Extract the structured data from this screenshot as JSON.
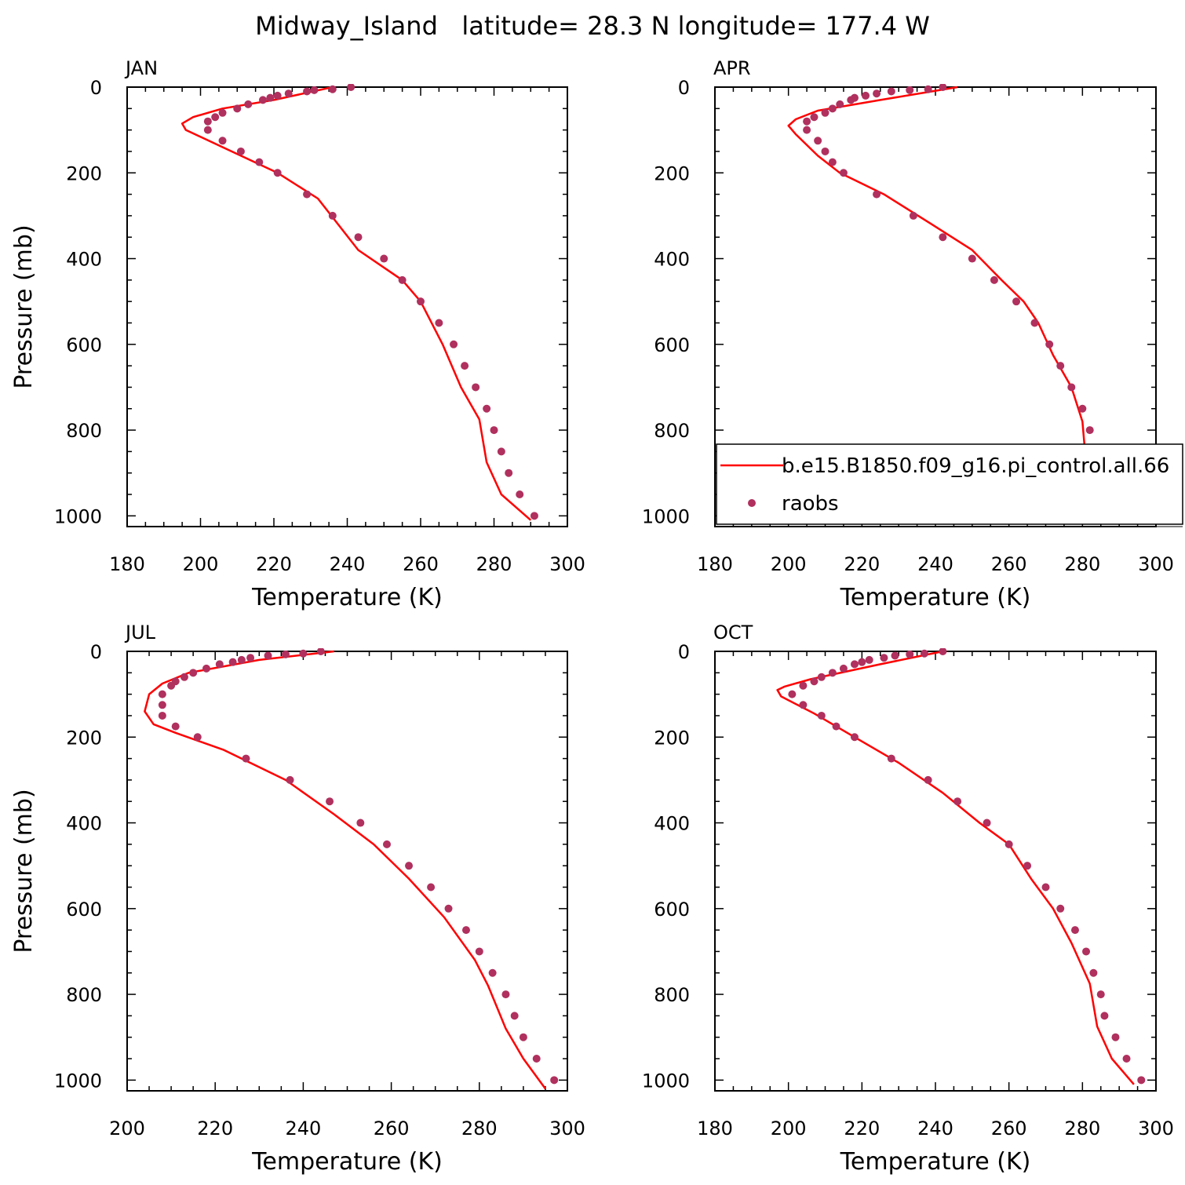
{
  "title": "Midway_Island   latitude= 28.3 N longitude= 177.4 W",
  "colors": {
    "model": "#ff0000",
    "obs": "#b0305e"
  },
  "legend": {
    "model_label": "b.e15.B1850.f09_g16.pi_control.all.66",
    "obs_label": "raobs"
  },
  "chart_data": [
    {
      "type": "line",
      "panel": "JAN",
      "xlabel": "Temperature (K)",
      "ylabel": "Pressure (mb)",
      "xlim": [
        180,
        300
      ],
      "xticks": [
        180,
        200,
        220,
        240,
        260,
        280,
        300
      ],
      "ylim": [
        0,
        1025
      ],
      "yticks": [
        0,
        200,
        400,
        600,
        800,
        1000
      ],
      "y_inverted": true,
      "series": [
        {
          "name": "b.e15.B1850.f09_g16.pi_control.all.66",
          "kind": "line",
          "points": [
            [
              236,
              0
            ],
            [
              220,
              30
            ],
            [
              206,
              50
            ],
            [
              198,
              70
            ],
            [
              195,
              85
            ],
            [
              196,
              100
            ],
            [
              206,
              140
            ],
            [
              221,
              200
            ],
            [
              232,
              260
            ],
            [
              243,
              380
            ],
            [
              255,
              450
            ],
            [
              260,
              500
            ],
            [
              266,
              600
            ],
            [
              271,
              700
            ],
            [
              276,
              775
            ],
            [
              278,
              875
            ],
            [
              282,
              950
            ],
            [
              290,
              1010
            ]
          ]
        },
        {
          "name": "raobs",
          "kind": "markers",
          "points": [
            [
              241,
              0
            ],
            [
              236,
              5
            ],
            [
              231,
              7
            ],
            [
              229,
              10
            ],
            [
              224,
              15
            ],
            [
              221,
              20
            ],
            [
              219,
              25
            ],
            [
              217,
              30
            ],
            [
              213,
              40
            ],
            [
              210,
              50
            ],
            [
              206,
              60
            ],
            [
              204,
              70
            ],
            [
              202,
              80
            ],
            [
              202,
              100
            ],
            [
              206,
              125
            ],
            [
              211,
              150
            ],
            [
              216,
              175
            ],
            [
              221,
              200
            ],
            [
              229,
              250
            ],
            [
              236,
              300
            ],
            [
              243,
              350
            ],
            [
              250,
              400
            ],
            [
              255,
              450
            ],
            [
              260,
              500
            ],
            [
              265,
              550
            ],
            [
              269,
              600
            ],
            [
              272,
              650
            ],
            [
              275,
              700
            ],
            [
              278,
              750
            ],
            [
              280,
              800
            ],
            [
              282,
              850
            ],
            [
              284,
              900
            ],
            [
              287,
              950
            ],
            [
              291,
              1000
            ]
          ]
        }
      ]
    },
    {
      "type": "line",
      "panel": "APR",
      "xlabel": "Temperature (K)",
      "ylabel": "",
      "xlim": [
        180,
        300
      ],
      "xticks": [
        180,
        200,
        220,
        240,
        260,
        280,
        300
      ],
      "ylim": [
        0,
        1025
      ],
      "yticks": [
        0,
        200,
        400,
        600,
        800,
        1000
      ],
      "y_inverted": true,
      "series": [
        {
          "name": "b.e15.B1850.f09_g16.pi_control.all.66",
          "kind": "line",
          "points": [
            [
              246,
              0
            ],
            [
              225,
              30
            ],
            [
              208,
              55
            ],
            [
              202,
              75
            ],
            [
              200,
              90
            ],
            [
              202,
              110
            ],
            [
              208,
              160
            ],
            [
              214,
              200
            ],
            [
              226,
              250
            ],
            [
              239,
              320
            ],
            [
              250,
              380
            ],
            [
              258,
              450
            ],
            [
              264,
              500
            ],
            [
              268,
              550
            ],
            [
              272,
              625
            ],
            [
              277,
              700
            ],
            [
              280,
              780
            ],
            [
              281,
              880
            ],
            [
              286,
              950
            ],
            [
              290,
              1010
            ]
          ]
        },
        {
          "name": "raobs",
          "kind": "markers",
          "points": [
            [
              242,
              0
            ],
            [
              238,
              5
            ],
            [
              233,
              7
            ],
            [
              228,
              10
            ],
            [
              224,
              15
            ],
            [
              221,
              20
            ],
            [
              218,
              25
            ],
            [
              217,
              30
            ],
            [
              214,
              40
            ],
            [
              212,
              50
            ],
            [
              210,
              60
            ],
            [
              207,
              70
            ],
            [
              205,
              80
            ],
            [
              205,
              100
            ],
            [
              208,
              125
            ],
            [
              210,
              150
            ],
            [
              212,
              175
            ],
            [
              215,
              200
            ],
            [
              224,
              250
            ],
            [
              234,
              300
            ],
            [
              242,
              350
            ],
            [
              250,
              400
            ],
            [
              256,
              450
            ],
            [
              262,
              500
            ],
            [
              267,
              550
            ],
            [
              271,
              600
            ],
            [
              274,
              650
            ],
            [
              277,
              700
            ],
            [
              280,
              750
            ],
            [
              282,
              800
            ],
            [
              283,
              850
            ],
            [
              285,
              900
            ],
            [
              287,
              950
            ],
            [
              291,
              1000
            ]
          ]
        }
      ]
    },
    {
      "type": "line",
      "panel": "JUL",
      "xlabel": "Temperature (K)",
      "ylabel": "Pressure (mb)",
      "xlim": [
        200,
        300
      ],
      "xticks": [
        200,
        220,
        240,
        260,
        280,
        300
      ],
      "ylim": [
        0,
        1025
      ],
      "yticks": [
        0,
        200,
        400,
        600,
        800,
        1000
      ],
      "y_inverted": true,
      "series": [
        {
          "name": "b.e15.B1850.f09_g16.pi_control.all.66",
          "kind": "line",
          "points": [
            [
              247,
              0
            ],
            [
              230,
              20
            ],
            [
              214,
              50
            ],
            [
              208,
              75
            ],
            [
              205,
              100
            ],
            [
              204,
              140
            ],
            [
              206,
              170
            ],
            [
              211,
              190
            ],
            [
              222,
              230
            ],
            [
              236,
              300
            ],
            [
              247,
              380
            ],
            [
              256,
              450
            ],
            [
              264,
              530
            ],
            [
              272,
              620
            ],
            [
              279,
              720
            ],
            [
              282,
              780
            ],
            [
              286,
              880
            ],
            [
              290,
              950
            ],
            [
              295,
              1020
            ]
          ]
        },
        {
          "name": "raobs",
          "kind": "markers",
          "points": [
            [
              244,
              0
            ],
            [
              240,
              5
            ],
            [
              236,
              7
            ],
            [
              232,
              10
            ],
            [
              228,
              15
            ],
            [
              226,
              20
            ],
            [
              224,
              25
            ],
            [
              221,
              30
            ],
            [
              218,
              40
            ],
            [
              215,
              50
            ],
            [
              213,
              60
            ],
            [
              211,
              70
            ],
            [
              210,
              80
            ],
            [
              208,
              100
            ],
            [
              208,
              125
            ],
            [
              208,
              150
            ],
            [
              211,
              175
            ],
            [
              216,
              200
            ],
            [
              227,
              250
            ],
            [
              237,
              300
            ],
            [
              246,
              350
            ],
            [
              253,
              400
            ],
            [
              259,
              450
            ],
            [
              264,
              500
            ],
            [
              269,
              550
            ],
            [
              273,
              600
            ],
            [
              277,
              650
            ],
            [
              280,
              700
            ],
            [
              283,
              750
            ],
            [
              286,
              800
            ],
            [
              288,
              850
            ],
            [
              290,
              900
            ],
            [
              293,
              950
            ],
            [
              297,
              1000
            ]
          ]
        }
      ]
    },
    {
      "type": "line",
      "panel": "OCT",
      "xlabel": "Temperature (K)",
      "ylabel": "",
      "xlim": [
        180,
        300
      ],
      "xticks": [
        180,
        200,
        220,
        240,
        260,
        280,
        300
      ],
      "ylim": [
        0,
        1025
      ],
      "yticks": [
        0,
        200,
        400,
        600,
        800,
        1000
      ],
      "y_inverted": true,
      "series": [
        {
          "name": "b.e15.B1850.f09_g16.pi_control.all.66",
          "kind": "line",
          "points": [
            [
              242,
              0
            ],
            [
              225,
              30
            ],
            [
              206,
              65
            ],
            [
              199,
              82
            ],
            [
              197,
              90
            ],
            [
              198,
              105
            ],
            [
              207,
              145
            ],
            [
              218,
              200
            ],
            [
              230,
              260
            ],
            [
              242,
              330
            ],
            [
              252,
              400
            ],
            [
              260,
              450
            ],
            [
              266,
              530
            ],
            [
              272,
              600
            ],
            [
              277,
              680
            ],
            [
              282,
              775
            ],
            [
              284,
              875
            ],
            [
              288,
              950
            ],
            [
              294,
              1010
            ]
          ]
        },
        {
          "name": "raobs",
          "kind": "markers",
          "points": [
            [
              242,
              0
            ],
            [
              237,
              5
            ],
            [
              233,
              7
            ],
            [
              229,
              10
            ],
            [
              226,
              15
            ],
            [
              222,
              20
            ],
            [
              220,
              25
            ],
            [
              218,
              30
            ],
            [
              215,
              40
            ],
            [
              212,
              50
            ],
            [
              209,
              60
            ],
            [
              207,
              70
            ],
            [
              204,
              80
            ],
            [
              201,
              100
            ],
            [
              204,
              125
            ],
            [
              209,
              150
            ],
            [
              213,
              175
            ],
            [
              218,
              200
            ],
            [
              228,
              250
            ],
            [
              238,
              300
            ],
            [
              246,
              350
            ],
            [
              254,
              400
            ],
            [
              260,
              450
            ],
            [
              265,
              500
            ],
            [
              270,
              550
            ],
            [
              274,
              600
            ],
            [
              278,
              650
            ],
            [
              281,
              700
            ],
            [
              283,
              750
            ],
            [
              285,
              800
            ],
            [
              286,
              850
            ],
            [
              289,
              900
            ],
            [
              292,
              950
            ],
            [
              296,
              1000
            ]
          ]
        }
      ]
    }
  ]
}
